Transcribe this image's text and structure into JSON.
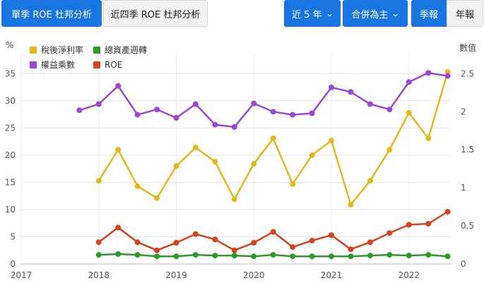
{
  "toolbar": {
    "tab_single": "單季 ROE 杜邦分析",
    "tab_four": "近四季 ROE 杜邦分析",
    "range_label": "近 5 年",
    "consolidation_label": "合併為主",
    "quarter_label": "季報",
    "year_label": "年報",
    "chevron_icon": "chevron-down-icon"
  },
  "chart_data": {
    "type": "line",
    "left_axis": {
      "unit_label": "%",
      "ticks": [
        0,
        5,
        10,
        15,
        20,
        25,
        30,
        35
      ],
      "range": [
        0,
        37.5
      ]
    },
    "right_axis": {
      "unit_label": "數值",
      "ticks": [
        0,
        0.5,
        1,
        1.5,
        2,
        2.5
      ],
      "range": [
        0,
        2.68
      ]
    },
    "x_axis": {
      "ticks": [
        "2017",
        "2018",
        "2019",
        "2020",
        "2021",
        "2022"
      ],
      "range": [
        2017.0,
        2022.54
      ]
    },
    "grid": true,
    "legend_position": "top-left",
    "series": [
      {
        "name": "稅後淨利率",
        "color": "#e3b81c",
        "axis": "left",
        "x": [
          2018.0,
          2018.25,
          2018.5,
          2018.75,
          2019.0,
          2019.25,
          2019.5,
          2019.75,
          2020.0,
          2020.25,
          2020.5,
          2020.75,
          2021.0,
          2021.25,
          2021.5,
          2021.75,
          2022.0,
          2022.25,
          2022.5
        ],
        "values": [
          15.3,
          21.0,
          14.3,
          12.1,
          18.0,
          21.4,
          18.8,
          11.9,
          18.4,
          23.1,
          14.7,
          20.0,
          22.7,
          10.9,
          15.3,
          21.0,
          27.8,
          23.1,
          35.3
        ]
      },
      {
        "name": "總資產週轉",
        "color": "#2a9a2a",
        "axis": "right",
        "x": [
          2018.0,
          2018.25,
          2018.5,
          2018.75,
          2019.0,
          2019.25,
          2019.5,
          2019.75,
          2020.0,
          2020.25,
          2020.5,
          2020.75,
          2021.0,
          2021.25,
          2021.5,
          2021.75,
          2022.0,
          2022.25,
          2022.5
        ],
        "values": [
          0.12,
          0.13,
          0.12,
          0.1,
          0.1,
          0.12,
          0.11,
          0.11,
          0.1,
          0.12,
          0.1,
          0.1,
          0.1,
          0.1,
          0.11,
          0.12,
          0.11,
          0.12,
          0.1
        ]
      },
      {
        "name": "權益乘數",
        "color": "#9b46d6",
        "axis": "right",
        "x": [
          2017.75,
          2018.0,
          2018.25,
          2018.5,
          2018.75,
          2019.0,
          2019.25,
          2019.5,
          2019.75,
          2020.0,
          2020.25,
          2020.5,
          2020.75,
          2021.0,
          2021.25,
          2021.5,
          2021.75,
          2022.0,
          2022.25,
          2022.5
        ],
        "values": [
          2.02,
          2.1,
          2.34,
          1.96,
          2.03,
          1.92,
          2.1,
          1.83,
          1.8,
          2.11,
          2.0,
          1.96,
          1.98,
          2.32,
          2.26,
          2.1,
          2.03,
          2.39,
          2.51,
          2.47
        ]
      },
      {
        "name": "ROE",
        "color": "#d9401e",
        "axis": "left",
        "x": [
          2018.0,
          2018.25,
          2018.5,
          2018.75,
          2019.0,
          2019.25,
          2019.5,
          2019.75,
          2020.0,
          2020.25,
          2020.5,
          2020.75,
          2021.0,
          2021.25,
          2021.5,
          2021.75,
          2022.0,
          2022.25,
          2022.5
        ],
        "values": [
          4.0,
          6.7,
          4.0,
          2.5,
          3.9,
          5.5,
          4.5,
          2.5,
          3.9,
          5.9,
          3.1,
          4.3,
          5.3,
          2.7,
          4.0,
          5.7,
          7.2,
          7.4,
          9.6
        ]
      }
    ]
  }
}
